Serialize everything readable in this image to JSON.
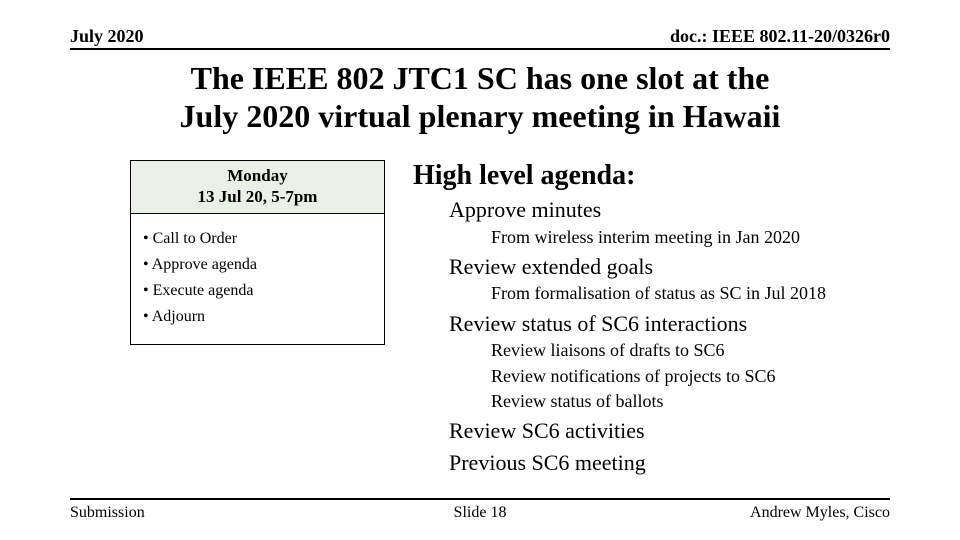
{
  "header": {
    "left": "July 2020",
    "right": "doc.: IEEE 802.11-20/0326r0"
  },
  "title": {
    "line1": "The IEEE 802 JTC1 SC has one slot at the",
    "line2": "July 2020 virtual plenary meeting in Hawaii"
  },
  "schedule": {
    "header_line1": "Monday",
    "header_line2": "13 Jul 20, 5-7pm",
    "items": [
      "Call to Order",
      "Approve agenda",
      "Execute agenda",
      "Adjourn"
    ],
    "box_border_color": "#000000",
    "header_bg_color": "#eaf0e6"
  },
  "agenda": {
    "heading": "High level agenda:",
    "lines": [
      {
        "level": 1,
        "text": "Approve minutes"
      },
      {
        "level": 2,
        "text": "From wireless interim meeting in Jan 2020"
      },
      {
        "level": 1,
        "text": "Review extended goals"
      },
      {
        "level": 2,
        "text": "From formalisation of status as SC in Jul 2018"
      },
      {
        "level": 1,
        "text": "Review status of SC6 interactions"
      },
      {
        "level": 2,
        "text": "Review liaisons of drafts to SC6"
      },
      {
        "level": 2,
        "text": "Review notifications of projects to SC6"
      },
      {
        "level": 2,
        "text": "Review status of ballots"
      },
      {
        "level": 1,
        "text": "Review SC6 activities"
      },
      {
        "level": 1,
        "text": "Previous SC6 meeting"
      }
    ]
  },
  "footer": {
    "left": "Submission",
    "center": "Slide 18",
    "right": "Andrew Myles, Cisco"
  },
  "style": {
    "background_color": "#ffffff",
    "text_color": "#000000",
    "rule_color": "#000000",
    "font_family": "Times New Roman",
    "title_fontsize_pt": 24,
    "header_fontsize_pt": 14,
    "agenda_title_fontsize_pt": 21,
    "agenda_l1_fontsize_pt": 17,
    "agenda_l2_fontsize_pt": 14,
    "footer_fontsize_pt": 12
  }
}
